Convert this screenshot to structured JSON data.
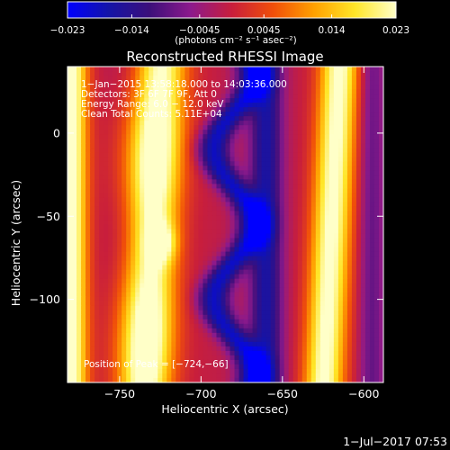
{
  "chart_data": {
    "type": "heatmap",
    "title": "Reconstructed RHESSI Image",
    "xlabel": "Heliocentric X (arcsec)",
    "ylabel": "Heliocentric Y (arcsec)",
    "xlim": [
      -782,
      -588
    ],
    "ylim": [
      -150,
      40
    ],
    "x_ticks": [
      -750,
      -700,
      -650,
      -600
    ],
    "x_tick_labels": [
      "−750",
      "−700",
      "−650",
      "−600"
    ],
    "y_ticks": [
      0,
      -50,
      -100
    ],
    "y_tick_labels": [
      "0",
      "−50",
      "−100"
    ],
    "colorbar": {
      "range": [
        -0.023,
        0.023
      ],
      "ticks": [
        -0.023,
        -0.014,
        -0.0045,
        0.0045,
        0.014,
        0.023
      ],
      "tick_labels": [
        "−0.023",
        "−0.014",
        "−0.0045",
        "0.0045",
        "0.014",
        "0.023"
      ],
      "unit_label": "(photons cm⁻² s⁻¹ asec⁻²)",
      "colormap": [
        "#0000ff",
        "#1414a8",
        "#3c0f7a",
        "#8c1a8c",
        "#c81e3c",
        "#f04e0a",
        "#ffa000",
        "#ffe628",
        "#ffffc8"
      ]
    },
    "info_lines": [
      "1−Jan−2015 13:58:18.000 to 14:03:36.000",
      "Detectors: 3F 6F 7F 9F, Att 0",
      "Energy Range: 6.0 − 12.0 keV",
      "Clean     Total Counts: 5.11E+04"
    ],
    "peak_label": "Position of Peak = [−724,−66]",
    "peak": [
      -724,
      -66
    ],
    "bands": [
      {
        "x_center": -780,
        "y_slope": 0.0,
        "amplitude": 1.0,
        "width": 10
      },
      {
        "x_center": -730,
        "y_slope": 0.05,
        "amplitude": 1.0,
        "width": 16
      },
      {
        "x_center": -680,
        "y_slope": -0.1,
        "amplitude": -0.7,
        "width": 10
      },
      {
        "x_center": -660,
        "y_slope": 0.0,
        "amplitude": -0.6,
        "width": 10
      },
      {
        "x_center": -620,
        "y_slope": 0.05,
        "amplitude": 0.95,
        "width": 12
      },
      {
        "x_center": -595,
        "y_slope": 0.0,
        "amplitude": -0.3,
        "width": 8
      }
    ]
  },
  "footer": {
    "timestamp": "1−Jul−2017 07:53"
  }
}
